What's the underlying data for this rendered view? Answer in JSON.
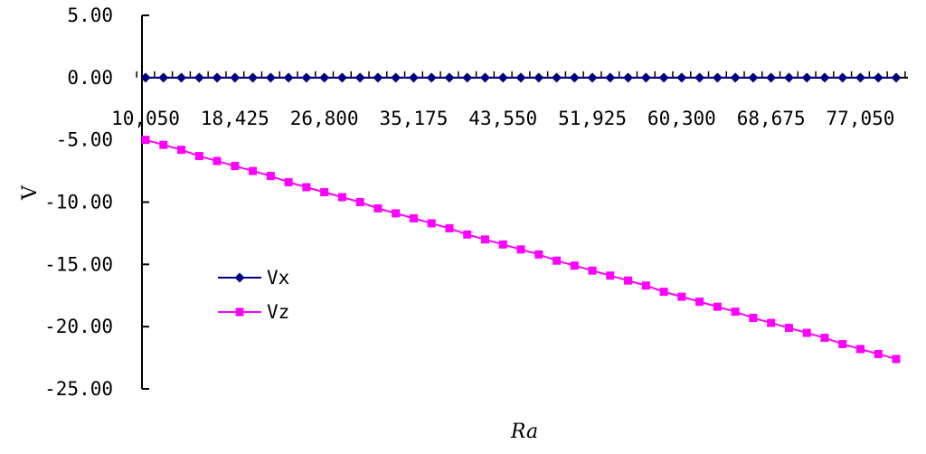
{
  "chart_data": {
    "type": "line",
    "xlabel": "Ra",
    "ylabel": "V",
    "ylim": [
      -25,
      5
    ],
    "yticks": [
      "5.00",
      "0.00",
      "-5.00",
      "-10.00",
      "-15.00",
      "-20.00",
      "-25.00"
    ],
    "x": [
      10050,
      11725,
      13400,
      15075,
      16750,
      18425,
      20100,
      21775,
      23450,
      25125,
      26800,
      28475,
      30150,
      31825,
      33500,
      35175,
      36850,
      38525,
      40200,
      41875,
      43550,
      45225,
      46900,
      48575,
      50250,
      51925,
      53600,
      55275,
      56950,
      58625,
      60300,
      61975,
      63650,
      65325,
      67000,
      68675,
      70350,
      72025,
      73700,
      75375,
      77050,
      78725,
      80400
    ],
    "xtick_labels": [
      "10,050",
      "18,425",
      "26,800",
      "35,175",
      "43,550",
      "51,925",
      "60,300",
      "68,675",
      "77,050"
    ],
    "grid": false,
    "legend": "left-lower",
    "series": [
      {
        "name": "Vx",
        "color": "#000080",
        "marker": "diamond",
        "values": [
          0,
          0,
          0,
          0,
          0,
          0,
          0,
          0,
          0,
          0,
          0,
          0,
          0,
          0,
          0,
          0,
          0,
          0,
          0,
          0,
          0,
          0,
          0,
          0,
          0,
          0,
          0,
          0,
          0,
          0,
          0,
          0,
          0,
          0,
          0,
          0,
          0,
          0,
          0,
          0,
          0,
          0,
          0
        ]
      },
      {
        "name": "Vz",
        "color": "#FF00FF",
        "marker": "square",
        "values": [
          -5.0,
          -5.4,
          -5.8,
          -6.3,
          -6.7,
          -7.1,
          -7.5,
          -7.9,
          -8.4,
          -8.8,
          -9.2,
          -9.6,
          -10.0,
          -10.5,
          -10.9,
          -11.3,
          -11.7,
          -12.1,
          -12.6,
          -13.0,
          -13.4,
          -13.8,
          -14.2,
          -14.7,
          -15.1,
          -15.5,
          -15.9,
          -16.3,
          -16.7,
          -17.2,
          -17.6,
          -18.0,
          -18.4,
          -18.8,
          -19.3,
          -19.7,
          -20.1,
          -20.5,
          -20.9,
          -21.4,
          -21.8,
          -22.2,
          -22.6
        ]
      }
    ]
  }
}
